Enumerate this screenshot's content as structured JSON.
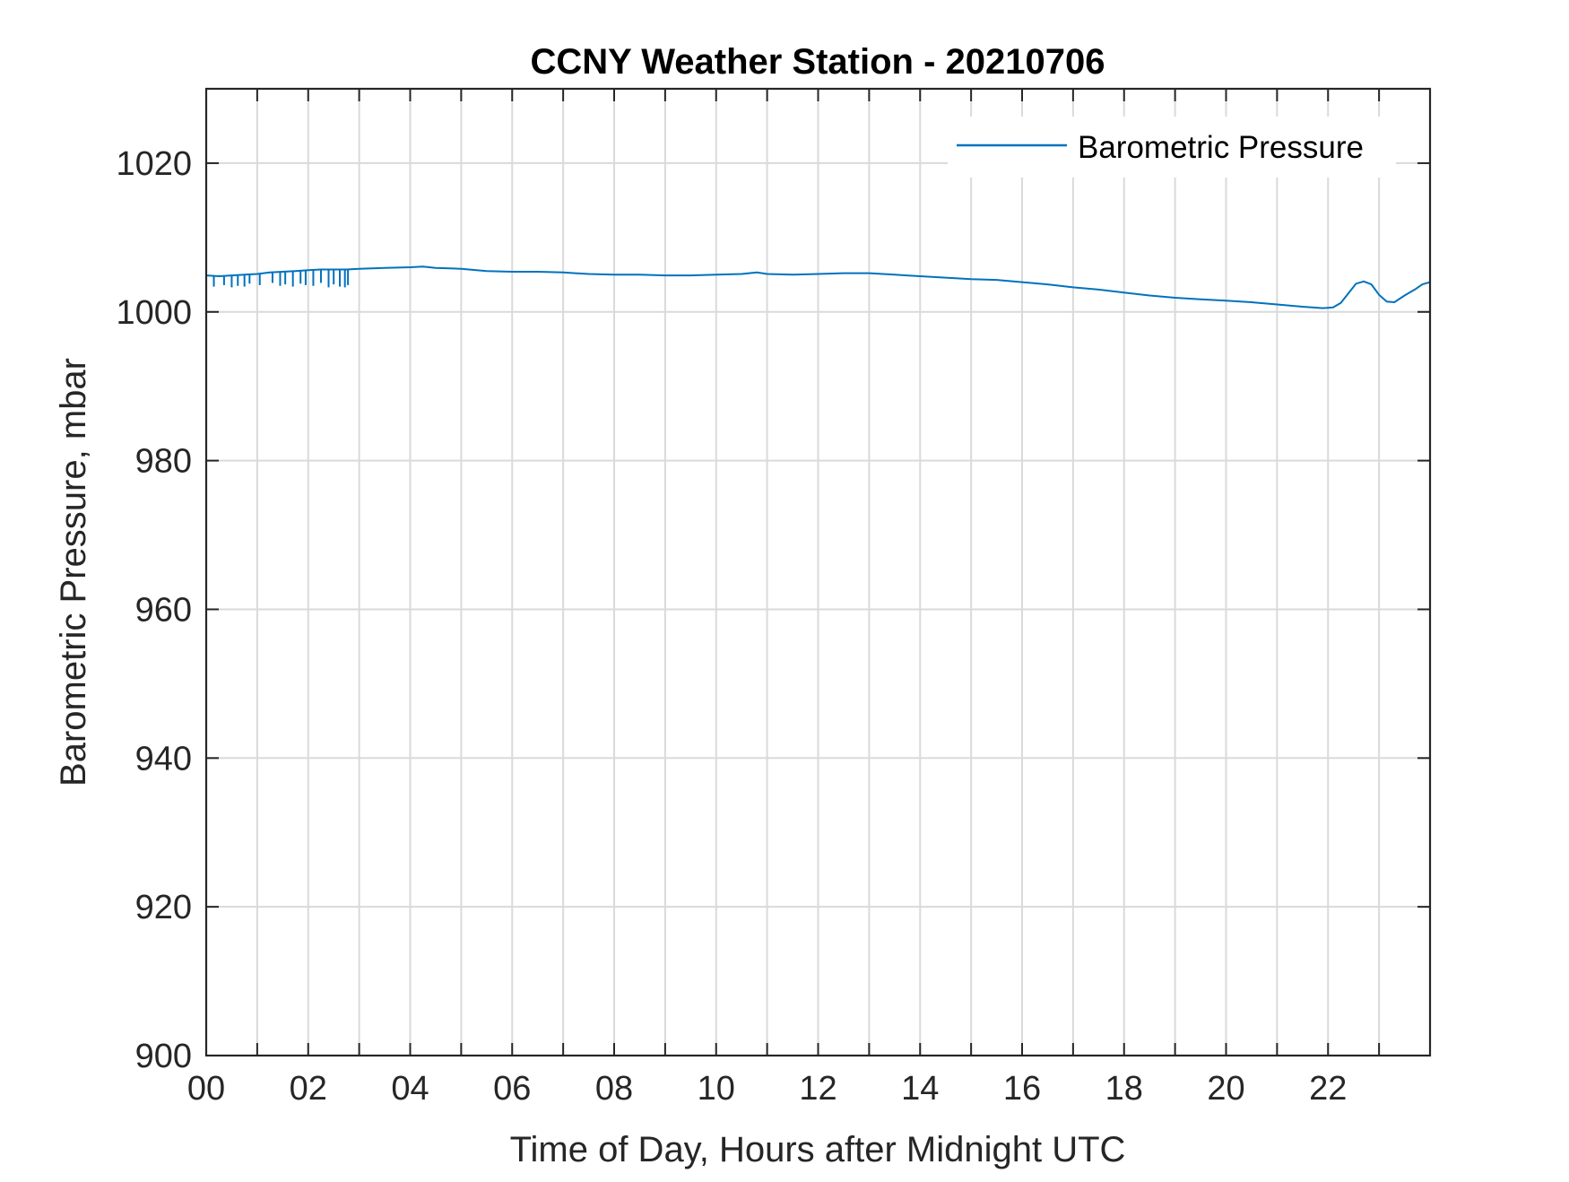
{
  "chart_data": {
    "type": "line",
    "title": "CCNY Weather Station - 20210706",
    "xlabel": "Time of Day, Hours after Midnight UTC",
    "ylabel": "Barometric Pressure, mbar",
    "xlim": [
      0,
      24
    ],
    "ylim": [
      900,
      1030
    ],
    "xtick_values": [
      0,
      2,
      4,
      6,
      8,
      10,
      12,
      14,
      16,
      18,
      20,
      22
    ],
    "xtick_labels": [
      "00",
      "02",
      "04",
      "06",
      "08",
      "10",
      "12",
      "14",
      "16",
      "18",
      "20",
      "22"
    ],
    "ytick_values": [
      900,
      920,
      940,
      960,
      980,
      1000,
      1020
    ],
    "ytick_labels": [
      "900",
      "920",
      "940",
      "960",
      "980",
      "1000",
      "1020"
    ],
    "grid": true,
    "minor_grid_x_step": 1,
    "legend_position": "top-right",
    "series": [
      {
        "name": "Barometric Pressure",
        "color": "#0072BD",
        "x": [
          0.0,
          0.25,
          0.5,
          0.75,
          1.0,
          1.25,
          1.5,
          1.75,
          2.0,
          2.25,
          2.5,
          2.75,
          3.0,
          3.5,
          4.0,
          4.25,
          4.5,
          5.0,
          5.5,
          6.0,
          6.5,
          7.0,
          7.5,
          8.0,
          8.5,
          9.0,
          9.5,
          10.0,
          10.5,
          10.8,
          11.0,
          11.5,
          12.0,
          12.5,
          13.0,
          13.5,
          14.0,
          14.5,
          15.0,
          15.5,
          16.0,
          16.5,
          17.0,
          17.5,
          18.0,
          18.5,
          19.0,
          19.5,
          20.0,
          20.5,
          21.0,
          21.5,
          21.9,
          22.1,
          22.25,
          22.4,
          22.55,
          22.7,
          22.85,
          23.0,
          23.15,
          23.3,
          23.5,
          23.7,
          23.85,
          24.0
        ],
        "y": [
          1004.9,
          1004.8,
          1004.9,
          1005.0,
          1005.1,
          1005.3,
          1005.4,
          1005.5,
          1005.6,
          1005.7,
          1005.7,
          1005.7,
          1005.8,
          1005.9,
          1006.0,
          1006.1,
          1005.9,
          1005.8,
          1005.5,
          1005.4,
          1005.4,
          1005.3,
          1005.1,
          1005.0,
          1005.0,
          1004.9,
          1004.9,
          1005.0,
          1005.1,
          1005.3,
          1005.1,
          1005.0,
          1005.1,
          1005.2,
          1005.2,
          1005.0,
          1004.8,
          1004.6,
          1004.4,
          1004.3,
          1004.0,
          1003.7,
          1003.3,
          1003.0,
          1002.6,
          1002.2,
          1001.9,
          1001.7,
          1001.5,
          1001.3,
          1001.0,
          1000.7,
          1000.5,
          1000.6,
          1001.2,
          1002.5,
          1003.8,
          1004.1,
          1003.7,
          1002.3,
          1001.4,
          1001.3,
          1002.2,
          1003.0,
          1003.7,
          1004.0
        ],
        "spikes": [
          {
            "x": 0.15,
            "y": 1003.4
          },
          {
            "x": 0.35,
            "y": 1003.6
          },
          {
            "x": 0.5,
            "y": 1003.3
          },
          {
            "x": 0.62,
            "y": 1003.5
          },
          {
            "x": 0.75,
            "y": 1003.4
          },
          {
            "x": 0.85,
            "y": 1003.8
          },
          {
            "x": 1.05,
            "y": 1003.6
          },
          {
            "x": 1.3,
            "y": 1003.9
          },
          {
            "x": 1.45,
            "y": 1003.5
          },
          {
            "x": 1.55,
            "y": 1003.7
          },
          {
            "x": 1.7,
            "y": 1003.4
          },
          {
            "x": 1.85,
            "y": 1003.8
          },
          {
            "x": 1.95,
            "y": 1003.6
          },
          {
            "x": 2.1,
            "y": 1003.5
          },
          {
            "x": 2.25,
            "y": 1003.9
          },
          {
            "x": 2.4,
            "y": 1003.3
          },
          {
            "x": 2.5,
            "y": 1003.7
          },
          {
            "x": 2.62,
            "y": 1003.4
          },
          {
            "x": 2.72,
            "y": 1003.3
          },
          {
            "x": 2.78,
            "y": 1003.6
          }
        ]
      }
    ]
  }
}
